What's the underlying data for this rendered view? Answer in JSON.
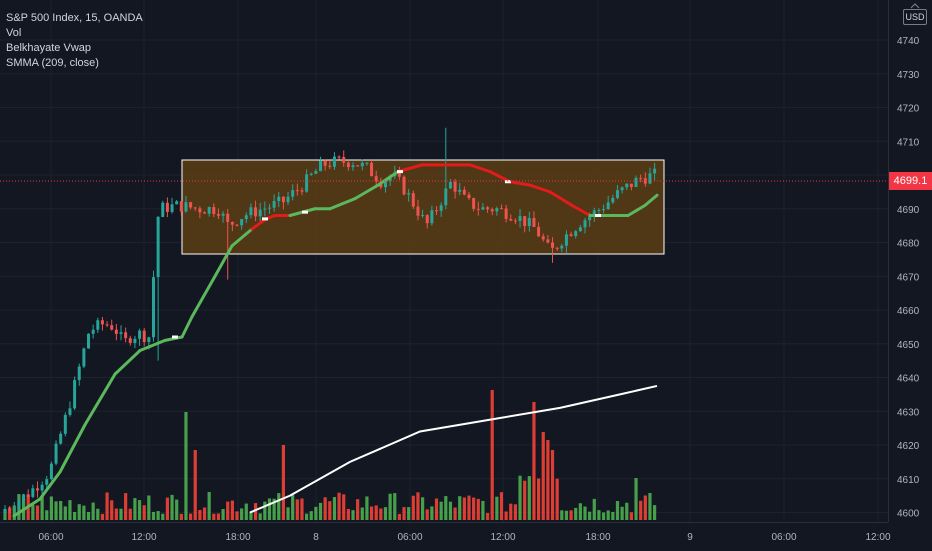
{
  "legend": {
    "symbol": "S&P 500 Index, 15, OANDA",
    "indicator_vol": "Vol",
    "indicator_vwap": "Belkhayate Vwap",
    "indicator_smma": "SMMA (209, close)"
  },
  "price_scale": {
    "currency": "USD",
    "last_price": "4699.1"
  },
  "colors": {
    "background": "#131722",
    "up": "#26a69a",
    "down": "#ef5350",
    "vol_up": "#4caf50",
    "vol_down": "#f44336",
    "vwap_line": "#5cb85c",
    "vwap_down": "#e31b1b",
    "smma": "#ffffff",
    "box_fill": "#5c3d13",
    "box_border": "#ffffff",
    "grid": "#1e222d",
    "axis_text": "#b2b5be",
    "last_price": "#f23645"
  },
  "chart_data": {
    "type": "candlestick",
    "title": "S&P 500 Index, 15, OANDA",
    "y_axis": {
      "ticks": [
        4600,
        4610,
        4620,
        4630,
        4640,
        4650,
        4660,
        4670,
        4680,
        4690,
        4700,
        4710,
        4720,
        4730,
        4740
      ],
      "range": [
        4597.2,
        4746.5
      ]
    },
    "x_axis": {
      "ticks": [
        "06:00",
        "12:00",
        "18:00",
        "8",
        "06:00",
        "12:00",
        "18:00",
        "9",
        "06:00",
        "12:00"
      ]
    },
    "last_price": 4699.1,
    "rectangle": {
      "price_top": 4705.9,
      "price_bottom": 4677.5,
      "time_start": "14:00",
      "time_end": "22:30"
    },
    "smma_end": {
      "time": "23:00 (day 8)",
      "value": 4637.5
    },
    "vwap_points": [
      [
        "05:00",
        4599
      ],
      [
        "06:30",
        4604
      ],
      [
        "08:00",
        4612
      ],
      [
        "09:30",
        4626
      ],
      [
        "11:00",
        4641
      ],
      [
        "12:30",
        4648
      ],
      [
        "13:30",
        4651
      ],
      [
        "14:00",
        4652
      ],
      [
        "14:30",
        4658
      ],
      [
        "16:00",
        4670
      ],
      [
        "17:00",
        4679
      ],
      [
        "17:45",
        4684
      ],
      [
        "18:45",
        4687
      ],
      [
        "19:15",
        4688
      ],
      [
        "20:00",
        4688
      ],
      [
        "20:45",
        4690
      ],
      [
        "22:00",
        4690
      ],
      [
        "23:30",
        4693
      ],
      [
        "01:00",
        4697
      ],
      [
        "02:30",
        4701
      ],
      [
        "04:30",
        4703
      ],
      [
        "06:00",
        4703
      ],
      [
        "07:30",
        4703
      ],
      [
        "09:00",
        4701
      ],
      [
        "10:30",
        4698
      ],
      [
        "12:00",
        4697
      ],
      [
        "13:30",
        4695
      ],
      [
        "15:00",
        4691
      ],
      [
        "16:30",
        4688
      ],
      [
        "18:00",
        4688
      ],
      [
        "19:30",
        4688
      ],
      [
        "21:00",
        4691
      ],
      [
        "22:00",
        4694
      ]
    ]
  }
}
